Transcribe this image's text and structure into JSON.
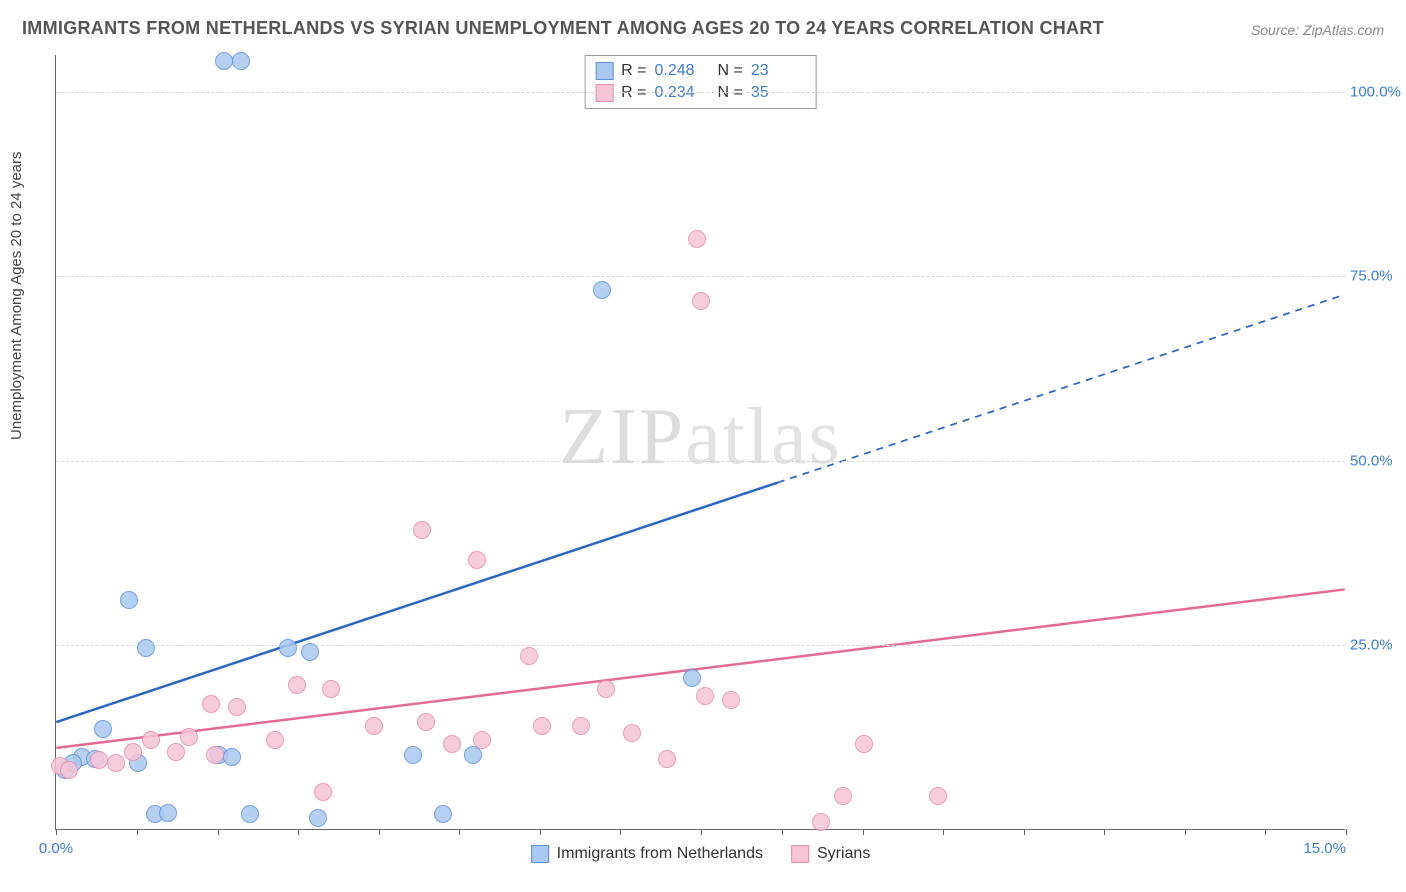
{
  "title": "IMMIGRANTS FROM NETHERLANDS VS SYRIAN UNEMPLOYMENT AMONG AGES 20 TO 24 YEARS CORRELATION CHART",
  "source": "Source: ZipAtlas.com",
  "watermark_bold": "ZIP",
  "watermark_light": "atlas",
  "y_axis_label": "Unemployment Among Ages 20 to 24 years",
  "chart": {
    "type": "scatter",
    "xlim": [
      0.0,
      15.0
    ],
    "ylim": [
      0.0,
      105.0
    ],
    "x_ticks": [
      0.0,
      0.94,
      1.88,
      2.81,
      3.75,
      4.69,
      5.63,
      6.56,
      7.5,
      8.44,
      9.38,
      10.31,
      11.25,
      12.19,
      13.13,
      14.06,
      15.0
    ],
    "x_tick_labels": {
      "0": "0.0%",
      "16": "15.0%"
    },
    "y_gridlines": [
      25.0,
      50.0,
      75.0,
      100.0
    ],
    "y_tick_labels": [
      "25.0%",
      "50.0%",
      "75.0%",
      "100.0%"
    ],
    "background_color": "#ffffff",
    "grid_color": "#d5d5d5",
    "axis_color": "#666666",
    "label_color_blue": "#3b7dd8",
    "point_radius": 9,
    "point_stroke_width": 1.5,
    "point_fill_opacity": 0.22
  },
  "series": [
    {
      "name": "Immigrants from Netherlands",
      "color_stroke": "#5a94e0",
      "color_fill": "#a9c8f0",
      "line_color": "#2a65c7",
      "line_width": 2.5,
      "R": "0.248",
      "N": "23",
      "trend": {
        "x1": 0.0,
        "y1": 14.5,
        "x2_solid": 8.4,
        "y2_solid": 47.0,
        "x2_dash": 15.0,
        "y2_dash": 72.5
      },
      "points": [
        [
          1.95,
          104.0
        ],
        [
          2.15,
          104.0
        ],
        [
          6.35,
          73.0
        ],
        [
          0.85,
          31.0
        ],
        [
          0.55,
          13.5
        ],
        [
          0.3,
          9.8
        ],
        [
          0.45,
          9.5
        ],
        [
          0.95,
          9.0
        ],
        [
          1.05,
          24.5
        ],
        [
          1.9,
          10.0
        ],
        [
          2.05,
          9.8
        ],
        [
          1.15,
          2.0
        ],
        [
          1.3,
          2.2
        ],
        [
          2.25,
          2.0
        ],
        [
          2.7,
          24.5
        ],
        [
          2.95,
          24.0
        ],
        [
          3.05,
          1.5
        ],
        [
          4.15,
          10.0
        ],
        [
          4.5,
          2.0
        ],
        [
          4.85,
          10.0
        ],
        [
          7.4,
          20.5
        ],
        [
          0.1,
          8.0
        ],
        [
          0.2,
          9.0
        ]
      ]
    },
    {
      "name": "Syrians",
      "color_stroke": "#e98bab",
      "color_fill": "#f6c5d6",
      "line_color": "#e26a94",
      "line_width": 2.5,
      "R": "0.234",
      "N": "35",
      "trend": {
        "x1": 0.0,
        "y1": 11.0,
        "x2_solid": 15.0,
        "y2_solid": 32.5,
        "x2_dash": 15.0,
        "y2_dash": 32.5
      },
      "points": [
        [
          7.45,
          80.0
        ],
        [
          7.5,
          71.5
        ],
        [
          4.25,
          40.5
        ],
        [
          4.9,
          36.5
        ],
        [
          0.05,
          8.5
        ],
        [
          0.15,
          8.0
        ],
        [
          0.5,
          9.3
        ],
        [
          0.7,
          9.0
        ],
        [
          0.9,
          10.5
        ],
        [
          1.1,
          12.0
        ],
        [
          1.4,
          10.5
        ],
        [
          1.55,
          12.5
        ],
        [
          1.8,
          17.0
        ],
        [
          1.85,
          10.0
        ],
        [
          2.1,
          16.5
        ],
        [
          2.55,
          12.0
        ],
        [
          2.8,
          19.5
        ],
        [
          3.1,
          5.0
        ],
        [
          3.2,
          19.0
        ],
        [
          3.7,
          14.0
        ],
        [
          4.3,
          14.5
        ],
        [
          4.6,
          11.5
        ],
        [
          4.95,
          12.0
        ],
        [
          5.5,
          23.5
        ],
        [
          5.65,
          14.0
        ],
        [
          6.1,
          14.0
        ],
        [
          6.4,
          19.0
        ],
        [
          6.7,
          13.0
        ],
        [
          7.1,
          9.5
        ],
        [
          7.55,
          18.0
        ],
        [
          7.85,
          17.5
        ],
        [
          8.9,
          1.0
        ],
        [
          9.15,
          4.5
        ],
        [
          9.4,
          11.5
        ],
        [
          10.25,
          4.5
        ]
      ]
    }
  ],
  "legend_bottom": [
    {
      "label": "Immigrants from Netherlands",
      "stroke": "#5a94e0",
      "fill": "#a9c8f0"
    },
    {
      "label": "Syrians",
      "stroke": "#e98bab",
      "fill": "#f6c5d6"
    }
  ]
}
